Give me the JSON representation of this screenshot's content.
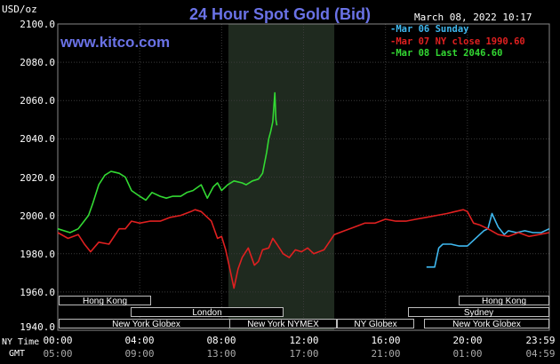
{
  "header": {
    "title": "24 Hour Spot Gold (Bid)",
    "unit": "USD/oz",
    "datetime": "March 08, 2022 10:17",
    "site": "www.kitco.com"
  },
  "legend": [
    {
      "label": "Mar 06 Sunday",
      "color": "#3fb8ef"
    },
    {
      "label": "Mar 07 NY close 1990.60",
      "color": "#e02020"
    },
    {
      "label": "Mar 08 Last 2046.60",
      "color": "#33d933"
    }
  ],
  "axis": {
    "y_labels": [
      "2100.0",
      "2080.0",
      "2060.0",
      "2040.0",
      "2020.0",
      "2000.0",
      "1980.0",
      "1960.0",
      "1940.0"
    ],
    "x_labels": [
      "00:00",
      "04:00",
      "08:00",
      "12:00",
      "16:00",
      "20:00",
      "23:59"
    ],
    "gmt_labels": [
      "05:00",
      "09:00",
      "13:00",
      "17:00",
      "21:00",
      "01:00",
      "04:59"
    ],
    "ny_time_label": "NY Time",
    "gmt_label": "GMT"
  },
  "markets": [
    {
      "name": "Hong Kong",
      "start": 0.0,
      "end": 1.9
    },
    {
      "name": "London",
      "start": 1.3,
      "end": 5.9
    },
    {
      "name": "New York Globex",
      "start": 0.0,
      "end": 4.6
    },
    {
      "name": "New York NYMEX",
      "start": 4.6,
      "end": 9.2
    },
    {
      "name": "NY Globex",
      "start": 9.2,
      "end": 14.5
    },
    {
      "name": "Hong Kong",
      "start": 19.0,
      "end": 24.0
    },
    {
      "name": "Sydney",
      "start": 18.0,
      "end": 24.0
    },
    {
      "name": "New York Globex",
      "start": 16.6,
      "end": 24.0
    }
  ],
  "chart_data": {
    "type": "line",
    "title": "24 Hour Spot Gold (Bid)",
    "ylabel": "USD/oz",
    "ylim": [
      1940,
      2100
    ],
    "xlim": [
      0,
      24
    ],
    "x_unit": "hours (NY Time)",
    "grid": true,
    "legend_position": "top-right",
    "series": [
      {
        "name": "Mar 06 Sunday",
        "color": "#3fb8ef",
        "x": [
          18.0,
          18.4,
          18.6,
          18.8,
          19.2,
          19.6,
          20.0,
          20.3,
          20.6,
          20.8,
          21.0,
          21.2,
          21.5,
          21.8,
          22.0,
          22.4,
          22.8,
          23.2,
          23.6,
          23.99
        ],
        "y": [
          1973,
          1973,
          1983,
          1985,
          1985,
          1984,
          1984,
          1987,
          1990,
          1992,
          1993,
          2001,
          1994,
          1990,
          1992,
          1991,
          1992,
          1991,
          1991,
          1993
        ]
      },
      {
        "name": "Mar 07 NY close 1990.60",
        "color": "#e02020",
        "x": [
          0.0,
          0.5,
          1.0,
          1.3,
          1.6,
          2.0,
          2.5,
          3.0,
          3.3,
          3.6,
          4.0,
          4.5,
          5.0,
          5.5,
          6.0,
          6.5,
          6.7,
          7.0,
          7.5,
          7.8,
          8.0,
          8.2,
          8.4,
          8.6,
          8.8,
          9.0,
          9.3,
          9.6,
          9.8,
          10.0,
          10.3,
          10.5,
          10.7,
          11.0,
          11.3,
          11.6,
          11.9,
          12.2,
          12.5,
          13.0,
          13.5,
          14.0,
          14.5,
          15.0,
          15.5,
          16.0,
          16.5,
          17.0,
          17.5,
          18.0,
          18.5,
          19.0,
          19.4,
          19.8,
          20.0,
          20.3,
          20.6,
          21.0,
          21.5,
          22.0,
          22.5,
          23.0,
          23.5,
          23.99
        ],
        "y": [
          1991,
          1988,
          1990,
          1985,
          1981,
          1986,
          1985,
          1993,
          1993,
          1997,
          1996,
          1997,
          1997,
          1999,
          2000,
          2002,
          2003,
          2002,
          1997,
          1988,
          1989,
          1982,
          1972,
          1962,
          1972,
          1978,
          1983,
          1974,
          1976,
          1982,
          1983,
          1988,
          1985,
          1980,
          1978,
          1982,
          1981,
          1983,
          1980,
          1982,
          1990,
          1992,
          1994,
          1996,
          1996,
          1998,
          1997,
          1997,
          1998,
          1999,
          2000,
          2001,
          2002,
          2003,
          2002,
          1996,
          1995,
          1993,
          1990,
          1989,
          1991,
          1989,
          1990,
          1991
        ]
      },
      {
        "name": "Mar 08 Last 2046.60",
        "color": "#33d933",
        "x": [
          0.0,
          0.6,
          1.0,
          1.5,
          1.7,
          2.0,
          2.3,
          2.6,
          3.0,
          3.3,
          3.6,
          4.0,
          4.3,
          4.6,
          5.0,
          5.3,
          5.6,
          6.0,
          6.3,
          6.6,
          7.0,
          7.3,
          7.6,
          7.8,
          8.0,
          8.3,
          8.6,
          9.0,
          9.2,
          9.5,
          9.8,
          10.0,
          10.2,
          10.3,
          10.4,
          10.5,
          10.55,
          10.6,
          10.65,
          10.7
        ],
        "y": [
          1993,
          1991,
          1993,
          2000,
          2006,
          2016,
          2021,
          2023,
          2022,
          2020,
          2013,
          2010,
          2008,
          2012,
          2010,
          2009,
          2010,
          2010,
          2012,
          2013,
          2016,
          2009,
          2015,
          2017,
          2013,
          2016,
          2018,
          2017,
          2016,
          2018,
          2019,
          2022,
          2033,
          2040,
          2044,
          2049,
          2057,
          2064,
          2050,
          2047
        ]
      }
    ]
  }
}
